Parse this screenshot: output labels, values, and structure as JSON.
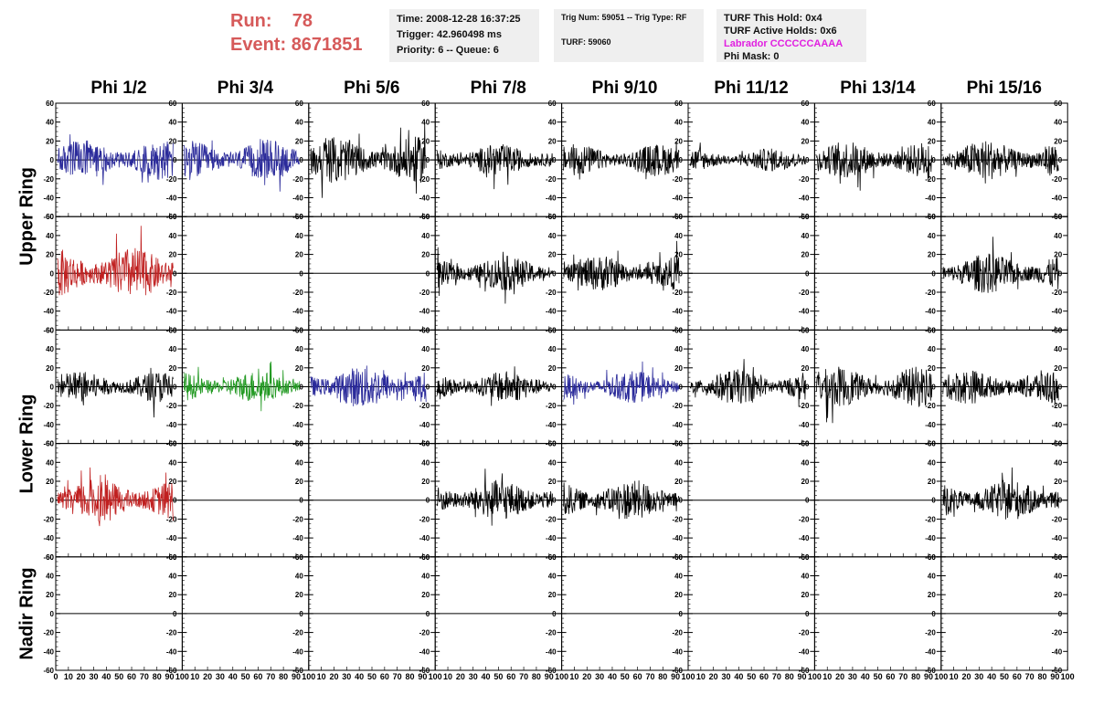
{
  "header": {
    "run_label": "Run:",
    "run_value": "78",
    "event_label": "Event:",
    "event_value": "8671851"
  },
  "time_box": {
    "time": "Time: 2008-12-28 16:37:25",
    "trigger": "Trigger: 42.960498 ms",
    "priority": "Priority: 6 -- Queue: 6"
  },
  "trig_box": {
    "trig": "Trig Num: 59051 -- Trig Type: RF",
    "turf": "TURF: 59060"
  },
  "turf_box": {
    "this_hold": "TURF This Hold: 0x4",
    "active_holds": "TURF Active Holds: 0x6",
    "labrador": "Labrador CCCCCCAAAA",
    "phi_mask": "Phi Mask: 0",
    "labrador_color": "#e020e0"
  },
  "columns": [
    "Phi 1/2",
    "Phi 3/4",
    "Phi 5/6",
    "Phi 7/8",
    "Phi 9/10",
    "Phi 11/12",
    "Phi 13/14",
    "Phi 15/16"
  ],
  "rings": [
    "Upper Ring",
    "Lower Ring",
    "Nadir Ring"
  ],
  "chart_data": {
    "type": "line",
    "ylim": [
      -60,
      60
    ],
    "xlim": [
      0,
      100
    ],
    "y_ticks": [
      -60,
      -40,
      -20,
      0,
      20,
      40,
      60
    ],
    "x_ticks": [
      0,
      10,
      20,
      30,
      40,
      50,
      60,
      70,
      80,
      90,
      100
    ],
    "x_tick_labels": [
      "0",
      "10",
      "20",
      "30",
      "40",
      "50",
      "60",
      "70",
      "80",
      "90",
      "100"
    ],
    "y_tick_labels": [
      "-60",
      "-40",
      "-20",
      "0",
      "20",
      "40",
      "60"
    ],
    "colors": {
      "blue": "#2a2a9a",
      "red": "#c02020",
      "green": "#229922",
      "black": "#000000"
    },
    "rows": [
      {
        "color": [
          "blue",
          "blue",
          "black",
          "black",
          "black",
          "black",
          "black",
          "black"
        ],
        "amp": [
          14,
          14,
          16,
          11,
          11,
          8,
          13,
          14
        ]
      },
      {
        "color": [
          "red",
          "black",
          "black",
          "black",
          "black",
          "black",
          "black",
          "black"
        ],
        "amp": [
          18,
          0,
          0,
          12,
          12,
          0,
          0,
          14
        ]
      },
      {
        "color": [
          "black",
          "green",
          "blue",
          "black",
          "blue",
          "black",
          "black",
          "black"
        ],
        "amp": [
          11,
          11,
          15,
          11,
          11,
          12,
          14,
          12
        ]
      },
      {
        "color": [
          "red",
          "black",
          "black",
          "black",
          "black",
          "black",
          "black",
          "black"
        ],
        "amp": [
          15,
          0,
          0,
          14,
          14,
          0,
          0,
          14
        ]
      },
      {
        "color": [
          "black",
          "black",
          "black",
          "black",
          "black",
          "black",
          "black",
          "black"
        ],
        "amp": [
          0,
          0,
          0,
          0,
          0,
          0,
          0,
          0
        ]
      }
    ]
  }
}
